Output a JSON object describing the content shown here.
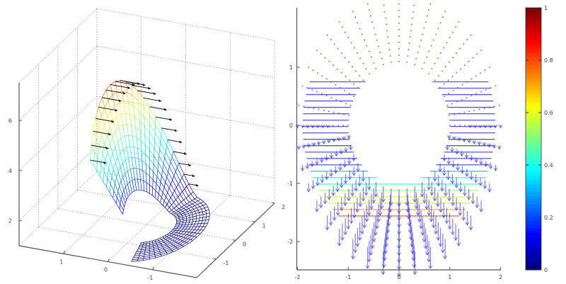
{
  "chart_data": [
    {
      "type": "surface3d",
      "title": "",
      "description": "3D wireframe surface (parametric annulus sheet rising on one side) colored by height with black normal/quiver arrows",
      "xlabel": "",
      "ylabel": "",
      "zlabel": "",
      "x_ticks": [
        "1",
        "0",
        "-1"
      ],
      "y_ticks": [
        "-1",
        "0",
        "1",
        "2"
      ],
      "z_ticks": [
        "2",
        "4",
        "6"
      ],
      "xlim": [
        -2,
        2
      ],
      "ylim": [
        -2,
        2
      ],
      "zlim": [
        1,
        7.5
      ],
      "grid": true,
      "colormap": "jet"
    },
    {
      "type": "quiver",
      "title": "",
      "description": "2D quiver field on annulus (inner radius 1, outer radius 2) with downward arrows growing toward bottom; jet-colored contour lines",
      "x_ticks": [
        "-2",
        "-1",
        "0",
        "1",
        "2"
      ],
      "y_ticks": [
        "1",
        "0",
        "-1",
        "-2"
      ],
      "xlim": [
        -2,
        2
      ],
      "ylim": [
        -2.5,
        2
      ],
      "inner_radius": 1,
      "outer_radius": 2,
      "arrow_color": "#2b2bff",
      "grid": false
    },
    {
      "type": "colorbar",
      "colormap": "jet",
      "range": [
        0,
        1
      ],
      "tick_labels": [
        "1",
        "0.8",
        "0.6",
        "0.4",
        "0.2",
        "0"
      ]
    }
  ],
  "colors": {
    "axis": "#555555",
    "grid": "#9a9a9a",
    "mesh_low": "#2626d9",
    "arrow3d": "#000000",
    "quiver": "#2b2bff"
  }
}
